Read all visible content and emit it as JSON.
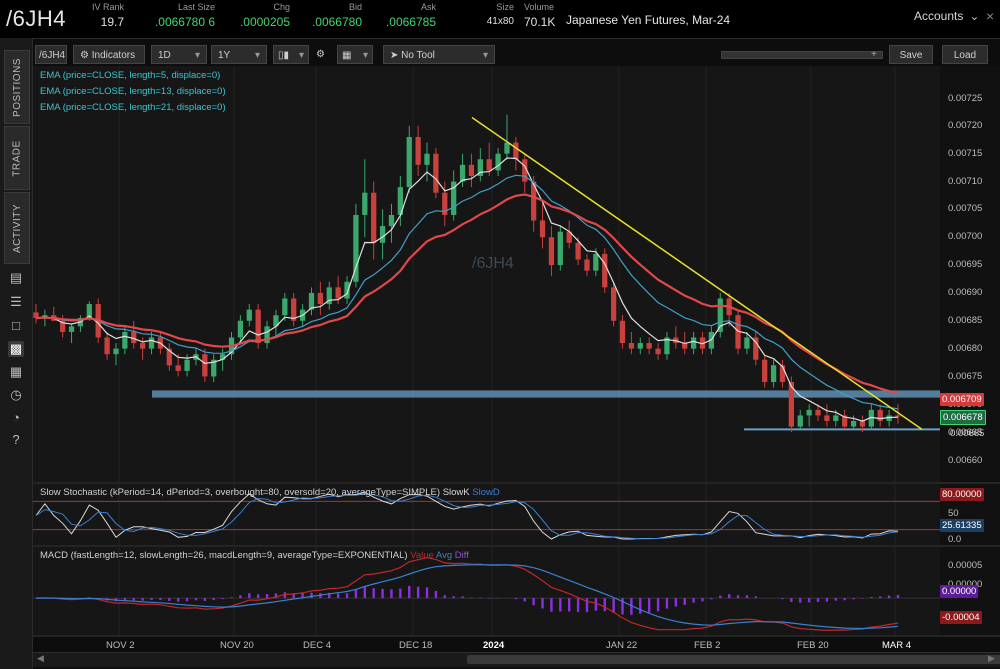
{
  "header": {
    "symbol": "/6JH4",
    "description": "Japanese Yen Futures, Mar-24",
    "accounts_label": "Accounts",
    "quotes": [
      {
        "label": "IV Rank",
        "value": "19.7"
      },
      {
        "label": "Last Size",
        "value": ".0066780 6"
      },
      {
        "label": "Chg",
        "value": ".0000205"
      },
      {
        "label": "Bid",
        "value": ".0066780"
      },
      {
        "label": "Ask",
        "value": ".0066785"
      },
      {
        "label": "Size",
        "value": "41x80"
      },
      {
        "label": "Volume",
        "value": "70.1K"
      }
    ]
  },
  "sidebar": {
    "tabs": [
      "POSITIONS",
      "TRADE",
      "ACTIVITY"
    ],
    "icons": [
      "list-icon",
      "bullets-icon",
      "box-icon",
      "chart-icon",
      "grid-icon",
      "clock-icon",
      "gauge-icon",
      "help-icon"
    ]
  },
  "toolbar": {
    "symbol": "/6JH4",
    "indicators": "Indicators",
    "interval": "1D",
    "range": "1Y",
    "tool": "No Tool",
    "save": "Save",
    "load": "Load"
  },
  "studies": {
    "ema": [
      "EMA (price=CLOSE, length=5, displace=0)",
      "EMA (price=CLOSE, length=13, displace=0)",
      "EMA (price=CLOSE, length=21, displace=0)"
    ],
    "stoch": "Slow Stochastic (kPeriod=14, dPeriod=3, overbought=80, oversold=20, averageType=SIMPLE)",
    "stoch_k": "SlowK",
    "stoch_d": "SlowD",
    "macd": "MACD (fastLength=12, slowLength=26, macdLength=9, averageType=EXPONENTIAL)",
    "macd_value": "Value",
    "macd_avg": "Avg",
    "macd_diff": "Diff"
  },
  "watermark": "/6JH4",
  "chart_data": {
    "type": "candlestick",
    "price_axis": [
      "0.00725",
      "0.00720",
      "0.00715",
      "0.00710",
      "0.00705",
      "0.00700",
      "0.00695",
      "0.00690",
      "0.00685",
      "0.00680",
      "0.00675",
      "0.00670",
      "0.00665",
      "0.00660"
    ],
    "x_ticks": [
      "NOV 2",
      "NOV 20",
      "DEC 4",
      "DEC 18",
      "2024",
      "JAN 22",
      "FEB 2",
      "FEB 20",
      "MAR 4"
    ],
    "price_tags": [
      {
        "value": "0.006709",
        "color": "#d8383a"
      },
      {
        "value": "0.006678",
        "color": "#2e8c5c"
      },
      {
        "value": "0.00665",
        "color": "#d0d0d0"
      }
    ],
    "stoch_axis": [
      "50",
      "0.0"
    ],
    "stoch_tags": [
      {
        "value": "80.00000",
        "color": "#c0282a"
      },
      {
        "value": "25.61335",
        "color": "#3b7fb8"
      }
    ],
    "macd_axis": [
      "0.00005",
      "0.00000"
    ],
    "macd_tags": [
      {
        "value": "0.00000",
        "color": "#8f2ee0"
      },
      {
        "value": "-0.00004",
        "color": "#c0282a"
      }
    ],
    "candles": [
      [
        0.006865,
        0.00688,
        0.006845,
        0.006855
      ],
      [
        0.006855,
        0.00687,
        0.00684,
        0.00686
      ],
      [
        0.00686,
        0.006875,
        0.00685,
        0.00685
      ],
      [
        0.00685,
        0.00686,
        0.00682,
        0.00683
      ],
      [
        0.00683,
        0.006845,
        0.00681,
        0.00684
      ],
      [
        0.00684,
        0.00686,
        0.00683,
        0.006855
      ],
      [
        0.006855,
        0.006885,
        0.00685,
        0.00688
      ],
      [
        0.00688,
        0.00689,
        0.00681,
        0.00682
      ],
      [
        0.00682,
        0.00683,
        0.00678,
        0.00679
      ],
      [
        0.00679,
        0.00681,
        0.00677,
        0.0068
      ],
      [
        0.0068,
        0.00684,
        0.00679,
        0.00683
      ],
      [
        0.00683,
        0.00685,
        0.0068,
        0.00681
      ],
      [
        0.00681,
        0.00682,
        0.00678,
        0.0068
      ],
      [
        0.0068,
        0.00683,
        0.00679,
        0.00682
      ],
      [
        0.00682,
        0.00683,
        0.00679,
        0.0068
      ],
      [
        0.0068,
        0.00681,
        0.00676,
        0.00677
      ],
      [
        0.00677,
        0.00679,
        0.00675,
        0.00676
      ],
      [
        0.00676,
        0.00679,
        0.00675,
        0.00678
      ],
      [
        0.00678,
        0.0068,
        0.00677,
        0.00679
      ],
      [
        0.00679,
        0.0068,
        0.00674,
        0.00675
      ],
      [
        0.00675,
        0.00679,
        0.00674,
        0.00678
      ],
      [
        0.00678,
        0.0068,
        0.00676,
        0.00679
      ],
      [
        0.00679,
        0.00683,
        0.00678,
        0.00682
      ],
      [
        0.00682,
        0.00686,
        0.00681,
        0.00685
      ],
      [
        0.00685,
        0.00688,
        0.00684,
        0.00687
      ],
      [
        0.00687,
        0.00688,
        0.0068,
        0.00681
      ],
      [
        0.00681,
        0.00685,
        0.0068,
        0.00684
      ],
      [
        0.00684,
        0.00687,
        0.00682,
        0.00686
      ],
      [
        0.00686,
        0.0069,
        0.00685,
        0.00689
      ],
      [
        0.00689,
        0.0069,
        0.00684,
        0.00685
      ],
      [
        0.00685,
        0.00688,
        0.00684,
        0.00687
      ],
      [
        0.00687,
        0.00691,
        0.00686,
        0.0069
      ],
      [
        0.0069,
        0.00692,
        0.00686,
        0.00688
      ],
      [
        0.00688,
        0.00692,
        0.00687,
        0.00691
      ],
      [
        0.00691,
        0.00693,
        0.00688,
        0.00689
      ],
      [
        0.00689,
        0.00693,
        0.00688,
        0.00692
      ],
      [
        0.00692,
        0.00706,
        0.00691,
        0.00704
      ],
      [
        0.00704,
        0.00714,
        0.007,
        0.00708
      ],
      [
        0.00708,
        0.0071,
        0.00696,
        0.00699
      ],
      [
        0.00699,
        0.00705,
        0.00696,
        0.00702
      ],
      [
        0.00702,
        0.00706,
        0.00699,
        0.00704
      ],
      [
        0.00704,
        0.00711,
        0.00702,
        0.00709
      ],
      [
        0.00709,
        0.0072,
        0.00708,
        0.00718
      ],
      [
        0.00718,
        0.0072,
        0.00711,
        0.00713
      ],
      [
        0.00713,
        0.00717,
        0.0071,
        0.00715
      ],
      [
        0.00715,
        0.00716,
        0.00707,
        0.00708
      ],
      [
        0.00708,
        0.0071,
        0.00702,
        0.00704
      ],
      [
        0.00704,
        0.00712,
        0.00703,
        0.0071
      ],
      [
        0.0071,
        0.00715,
        0.00709,
        0.00713
      ],
      [
        0.00713,
        0.00715,
        0.00709,
        0.00711
      ],
      [
        0.00711,
        0.00716,
        0.0071,
        0.00714
      ],
      [
        0.00714,
        0.00717,
        0.00711,
        0.00712
      ],
      [
        0.00712,
        0.00716,
        0.00711,
        0.00715
      ],
      [
        0.00715,
        0.00722,
        0.00714,
        0.00717
      ],
      [
        0.00717,
        0.00718,
        0.00712,
        0.00714
      ],
      [
        0.00714,
        0.00715,
        0.00708,
        0.0071
      ],
      [
        0.0071,
        0.00711,
        0.00701,
        0.00703
      ],
      [
        0.00703,
        0.00706,
        0.00698,
        0.007
      ],
      [
        0.007,
        0.00702,
        0.00693,
        0.00695
      ],
      [
        0.00695,
        0.00702,
        0.00694,
        0.00701
      ],
      [
        0.00701,
        0.00703,
        0.00698,
        0.00699
      ],
      [
        0.00699,
        0.007,
        0.00695,
        0.00696
      ],
      [
        0.00696,
        0.00697,
        0.00693,
        0.00694
      ],
      [
        0.00694,
        0.00698,
        0.00693,
        0.00697
      ],
      [
        0.00697,
        0.00698,
        0.0069,
        0.00691
      ],
      [
        0.00691,
        0.00692,
        0.00684,
        0.00685
      ],
      [
        0.00685,
        0.00686,
        0.0068,
        0.00681
      ],
      [
        0.00681,
        0.00683,
        0.00679,
        0.0068
      ],
      [
        0.0068,
        0.00682,
        0.00679,
        0.00681
      ],
      [
        0.00681,
        0.00682,
        0.00679,
        0.0068
      ],
      [
        0.0068,
        0.00681,
        0.00678,
        0.00679
      ],
      [
        0.00679,
        0.00683,
        0.00678,
        0.00682
      ],
      [
        0.00682,
        0.00684,
        0.0068,
        0.00681
      ],
      [
        0.00681,
        0.00683,
        0.00679,
        0.0068
      ],
      [
        0.0068,
        0.00683,
        0.00679,
        0.00682
      ],
      [
        0.00682,
        0.00683,
        0.00679,
        0.0068
      ],
      [
        0.0068,
        0.00684,
        0.00679,
        0.00683
      ],
      [
        0.00683,
        0.0069,
        0.00682,
        0.00689
      ],
      [
        0.00689,
        0.0069,
        0.00684,
        0.00686
      ],
      [
        0.00686,
        0.00687,
        0.00679,
        0.0068
      ],
      [
        0.0068,
        0.00683,
        0.00679,
        0.00682
      ],
      [
        0.00682,
        0.00683,
        0.00677,
        0.00678
      ],
      [
        0.00678,
        0.00679,
        0.00673,
        0.00674
      ],
      [
        0.00674,
        0.00678,
        0.00673,
        0.00677
      ],
      [
        0.00677,
        0.00678,
        0.00673,
        0.00674
      ],
      [
        0.00674,
        0.00675,
        0.00665,
        0.00666
      ],
      [
        0.00666,
        0.00669,
        0.006655,
        0.00668
      ],
      [
        0.00668,
        0.0067,
        0.00666,
        0.00669
      ],
      [
        0.00669,
        0.0067,
        0.00667,
        0.00668
      ],
      [
        0.00668,
        0.0067,
        0.00666,
        0.00667
      ],
      [
        0.00667,
        0.00669,
        0.00666,
        0.00668
      ],
      [
        0.00668,
        0.00669,
        0.006655,
        0.00666
      ],
      [
        0.00666,
        0.00668,
        0.006655,
        0.00667
      ],
      [
        0.00667,
        0.00668,
        0.00665,
        0.00666
      ],
      [
        0.00666,
        0.0067,
        0.006655,
        0.00669
      ],
      [
        0.00669,
        0.0067,
        0.00666,
        0.00667
      ],
      [
        0.00667,
        0.00669,
        0.00666,
        0.00668
      ],
      [
        0.00668,
        0.0067,
        0.006665,
        0.006678
      ]
    ],
    "ema_colors": [
      "#e0e0e0",
      "#3fa0c8",
      "#e0484a"
    ]
  }
}
